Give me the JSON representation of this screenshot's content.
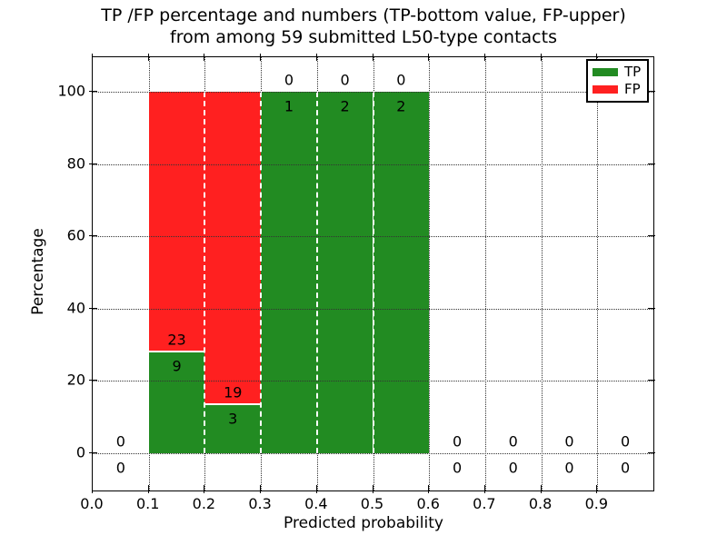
{
  "figure": {
    "title_line1": "TP /FP percentage and numbers (TP-bottom value, FP-upper)",
    "title_line2": "from among 59 submitted L50-type contacts",
    "xlabel": "Predicted probability",
    "ylabel": "Percentage"
  },
  "legend": {
    "items": [
      {
        "label": "TP",
        "color": "#228B22"
      },
      {
        "label": "FP",
        "color": "#FF2020"
      }
    ]
  },
  "chart_data": {
    "type": "bar",
    "stacked": true,
    "title": "TP /FP percentage and numbers (TP-bottom value, FP-upper) from among 59 submitted L50-type contacts",
    "xlabel": "Predicted probability",
    "ylabel": "Percentage",
    "total_submitted_contacts": 59,
    "contact_type": "L50",
    "xlim": [
      0.0,
      1.0
    ],
    "ylim": [
      -10,
      110
    ],
    "xticks": [
      "0.0",
      "0.1",
      "0.2",
      "0.3",
      "0.4",
      "0.5",
      "0.6",
      "0.7",
      "0.8",
      "0.9"
    ],
    "yticks": [
      0,
      20,
      40,
      60,
      80,
      100
    ],
    "grid": true,
    "legend_position": "upper right",
    "series": [
      {
        "name": "TP",
        "color": "#228B22",
        "stack_order": "bottom"
      },
      {
        "name": "FP",
        "color": "#FF2020",
        "stack_order": "top"
      }
    ],
    "bins": [
      {
        "x_start": 0.0,
        "x_end": 0.1,
        "tp_count": 0,
        "fp_count": 0,
        "tp_pct": 0,
        "fp_pct": 0
      },
      {
        "x_start": 0.1,
        "x_end": 0.2,
        "tp_count": 9,
        "fp_count": 23,
        "tp_pct": 28.1,
        "fp_pct": 71.9
      },
      {
        "x_start": 0.2,
        "x_end": 0.3,
        "tp_count": 3,
        "fp_count": 19,
        "tp_pct": 13.6,
        "fp_pct": 86.4
      },
      {
        "x_start": 0.3,
        "x_end": 0.4,
        "tp_count": 1,
        "fp_count": 0,
        "tp_pct": 100,
        "fp_pct": 0
      },
      {
        "x_start": 0.4,
        "x_end": 0.5,
        "tp_count": 2,
        "fp_count": 0,
        "tp_pct": 100,
        "fp_pct": 0
      },
      {
        "x_start": 0.5,
        "x_end": 0.6,
        "tp_count": 2,
        "fp_count": 0,
        "tp_pct": 100,
        "fp_pct": 0
      },
      {
        "x_start": 0.6,
        "x_end": 0.7,
        "tp_count": 0,
        "fp_count": 0,
        "tp_pct": 0,
        "fp_pct": 0
      },
      {
        "x_start": 0.7,
        "x_end": 0.8,
        "tp_count": 0,
        "fp_count": 0,
        "tp_pct": 0,
        "fp_pct": 0
      },
      {
        "x_start": 0.8,
        "x_end": 0.9,
        "tp_count": 0,
        "fp_count": 0,
        "tp_pct": 0,
        "fp_pct": 0
      },
      {
        "x_start": 0.9,
        "x_end": 1.0,
        "tp_count": 0,
        "fp_count": 0,
        "tp_pct": 0,
        "fp_pct": 0
      }
    ]
  }
}
